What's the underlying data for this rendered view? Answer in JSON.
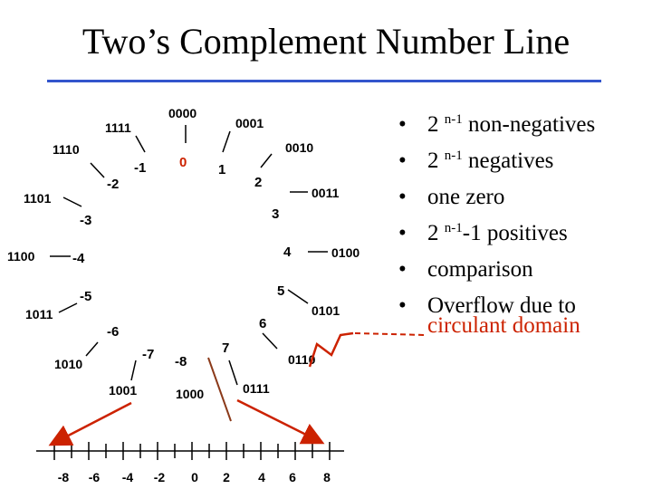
{
  "title": "Two’s Complement Number Line",
  "colors": {
    "rule": "#3355cc",
    "zero": "#cc2200",
    "circle_line": "#000000",
    "arrow": "#cc2200",
    "divider": "#8b3a1a"
  },
  "circle": {
    "bit_patterns": [
      "0000",
      "0001",
      "0010",
      "0011",
      "0100",
      "0101",
      "0110",
      "0111",
      "1000",
      "1001",
      "1010",
      "1011",
      "1100",
      "1101",
      "1110",
      "1111"
    ],
    "values": [
      "0",
      "1",
      "2",
      "3",
      "4",
      "5",
      "6",
      "7",
      "-8",
      "-7",
      "-6",
      "-5",
      "-4",
      "-3",
      "-2",
      "-1"
    ]
  },
  "number_line": {
    "labels": [
      "-8",
      "-6",
      "-4",
      "-2",
      "0",
      "2",
      "4",
      "6",
      "8"
    ]
  },
  "bullets": {
    "b1": {
      "pre": "2 ",
      "sup": "n-1",
      "post": " non-negatives"
    },
    "b2": {
      "pre": "2 ",
      "sup": "n-1",
      "post": " negatives"
    },
    "b3": {
      "text": "one zero"
    },
    "b4": {
      "pre": "2 ",
      "sup": "n-1",
      "post": "-1 positives"
    },
    "b5": {
      "text": "comparison"
    },
    "b6": {
      "text": "Overflow due to"
    },
    "b6_cont": "circulant domain",
    "bullet_char": "•"
  }
}
